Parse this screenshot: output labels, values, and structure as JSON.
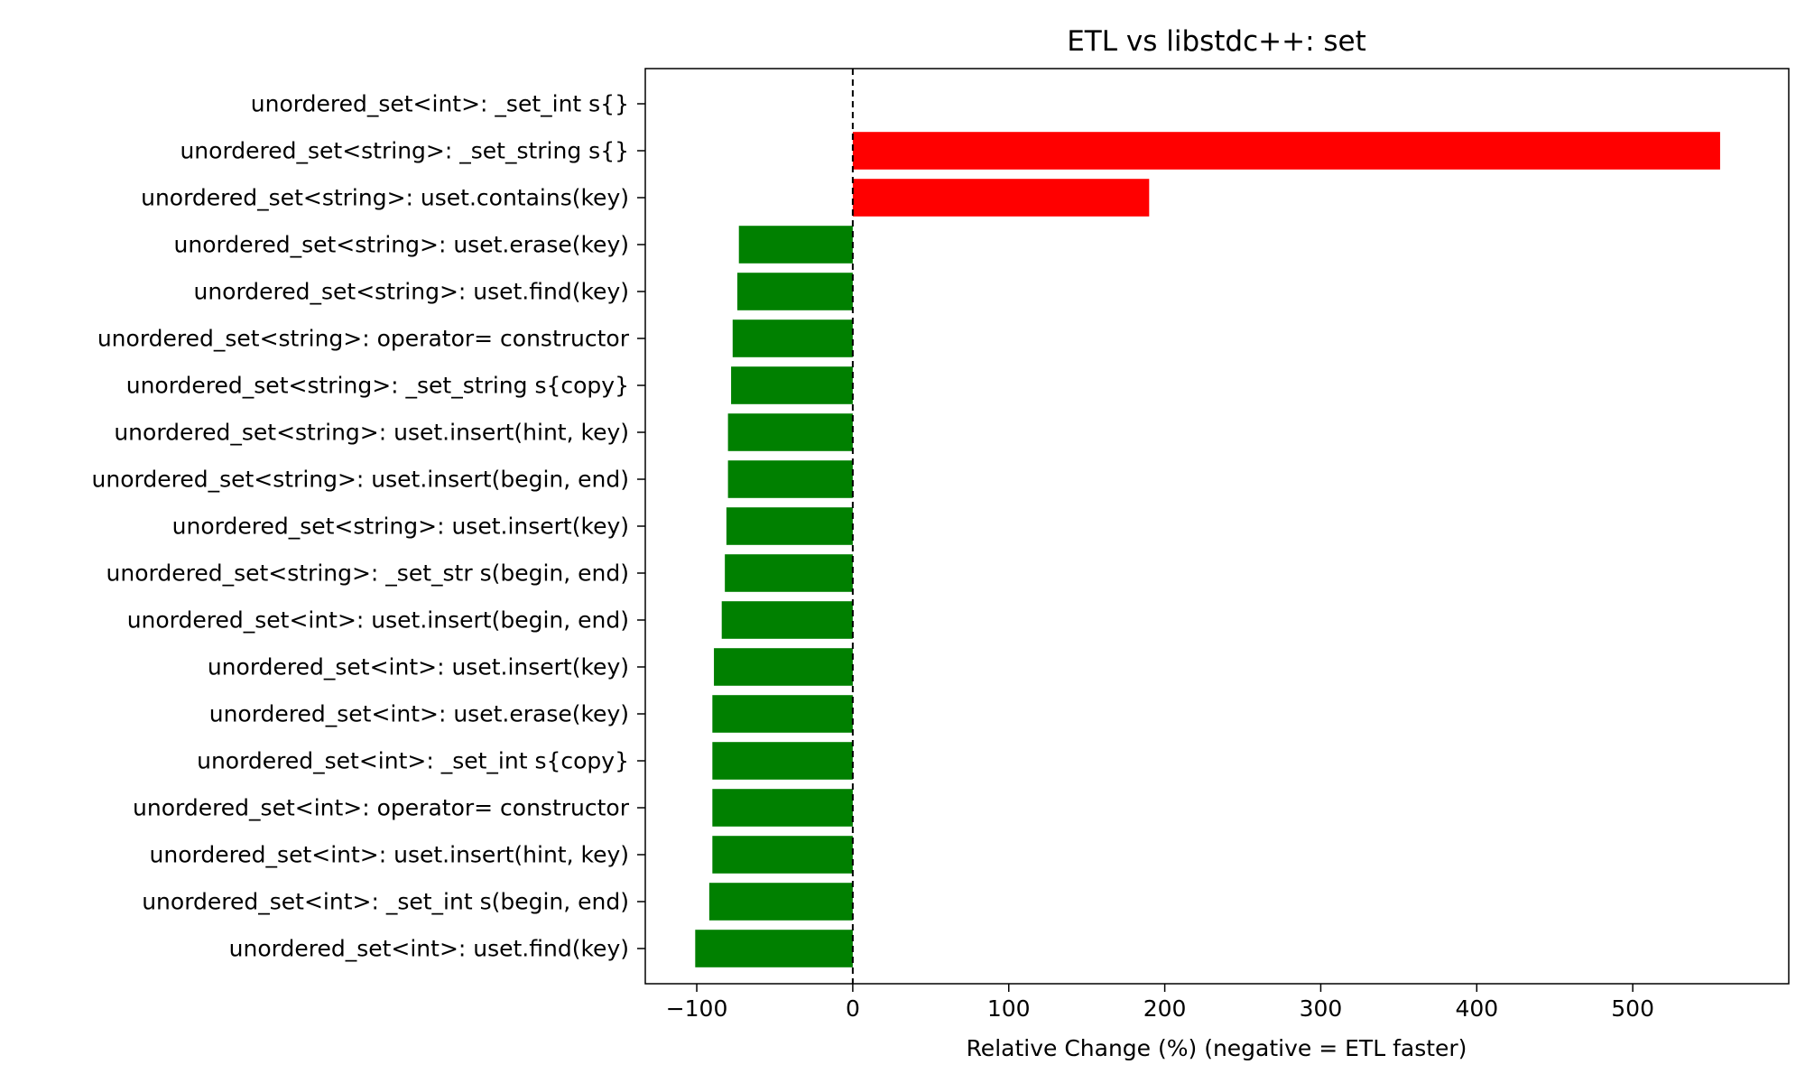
{
  "chart_data": {
    "type": "bar",
    "orientation": "horizontal",
    "title": "ETL vs libstdc++: set",
    "xlabel": "Relative Change (%)  (negative = ETL faster)",
    "ylabel": "",
    "xlim": [
      -133,
      600
    ],
    "xticks": [
      -100,
      0,
      100,
      200,
      300,
      400,
      500
    ],
    "xtick_labels": [
      "−100",
      "0",
      "100",
      "200",
      "300",
      "400",
      "500"
    ],
    "grid": false,
    "legend": false,
    "reference_line": {
      "x": 0,
      "style": "dashed",
      "color": "#000000"
    },
    "colors": {
      "positive": "#ff0000",
      "negative": "#008000"
    },
    "categories": [
      "unordered_set<int>: _set_int s{}",
      "unordered_set<string>: _set_string s{}",
      "unordered_set<string>: uset.contains(key)",
      "unordered_set<string>: uset.erase(key)",
      "unordered_set<string>: uset.find(key)",
      "unordered_set<string>: operator= constructor",
      "unordered_set<string>: _set_string s{copy}",
      "unordered_set<string>: uset.insert(hint, key)",
      "unordered_set<string>: uset.insert(begin, end)",
      "unordered_set<string>: uset.insert(key)",
      "unordered_set<string>: _set_str s(begin, end)",
      "unordered_set<int>: uset.insert(begin, end)",
      "unordered_set<int>: uset.insert(key)",
      "unordered_set<int>: uset.erase(key)",
      "unordered_set<int>: _set_int s{copy}",
      "unordered_set<int>: operator= constructor",
      "unordered_set<int>: uset.insert(hint, key)",
      "unordered_set<int>: _set_int s(begin, end)",
      "unordered_set<int>: uset.find(key)"
    ],
    "values": [
      0,
      556,
      190,
      -73,
      -74,
      -77,
      -78,
      -80,
      -80,
      -81,
      -82,
      -84,
      -89,
      -90,
      -90,
      -90,
      -90,
      -92,
      -101
    ]
  }
}
